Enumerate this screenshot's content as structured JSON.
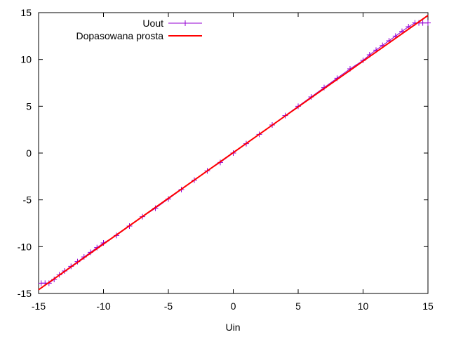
{
  "chart_data": {
    "type": "line",
    "title": "",
    "xlabel": "Uin",
    "ylabel": "",
    "xlim": [
      -15,
      15
    ],
    "ylim": [
      -15,
      15
    ],
    "xticks": [
      -15,
      -10,
      -5,
      0,
      5,
      10,
      15
    ],
    "yticks": [
      -15,
      -10,
      -5,
      0,
      5,
      10,
      15
    ],
    "grid": false,
    "legend_position": "top-left",
    "series": [
      {
        "name": "Uout",
        "style": "line-with-plus-markers",
        "color": "#9400d3",
        "points": [
          [
            -14.8,
            -13.9
          ],
          [
            -14.5,
            -13.9
          ],
          [
            -14.2,
            -13.9
          ],
          [
            -13.8,
            -13.5
          ],
          [
            -13.4,
            -13.0
          ],
          [
            -13.0,
            -12.6
          ],
          [
            -12.5,
            -12.1
          ],
          [
            -12.0,
            -11.6
          ],
          [
            -11.5,
            -11.1
          ],
          [
            -11.0,
            -10.6
          ],
          [
            -10.5,
            -10.1
          ],
          [
            -10.0,
            -9.6
          ],
          [
            -9.0,
            -8.8
          ],
          [
            -8.0,
            -7.8
          ],
          [
            -7.0,
            -6.8
          ],
          [
            -6.0,
            -5.9
          ],
          [
            -5.0,
            -4.9
          ],
          [
            -4.0,
            -3.9
          ],
          [
            -3.0,
            -2.9
          ],
          [
            -2.0,
            -1.9
          ],
          [
            -1.0,
            -1.0
          ],
          [
            0.0,
            0.0
          ],
          [
            1.0,
            1.0
          ],
          [
            2.0,
            2.0
          ],
          [
            3.0,
            3.0
          ],
          [
            4.0,
            4.0
          ],
          [
            5.0,
            5.0
          ],
          [
            6.0,
            6.0
          ],
          [
            7.0,
            7.0
          ],
          [
            8.0,
            8.0
          ],
          [
            9.0,
            9.0
          ],
          [
            10.0,
            9.9
          ],
          [
            10.5,
            10.5
          ],
          [
            11.0,
            11.0
          ],
          [
            11.5,
            11.5
          ],
          [
            12.0,
            12.0
          ],
          [
            12.5,
            12.5
          ],
          [
            13.0,
            13.0
          ],
          [
            13.5,
            13.5
          ],
          [
            14.0,
            13.9
          ],
          [
            14.3,
            13.9
          ],
          [
            14.6,
            13.9
          ],
          [
            15.0,
            13.9
          ]
        ]
      },
      {
        "name": "Dopasowana prosta",
        "style": "line",
        "color": "#ff0000",
        "points": [
          [
            -15.0,
            -14.6
          ],
          [
            15.0,
            14.7
          ]
        ]
      }
    ]
  }
}
